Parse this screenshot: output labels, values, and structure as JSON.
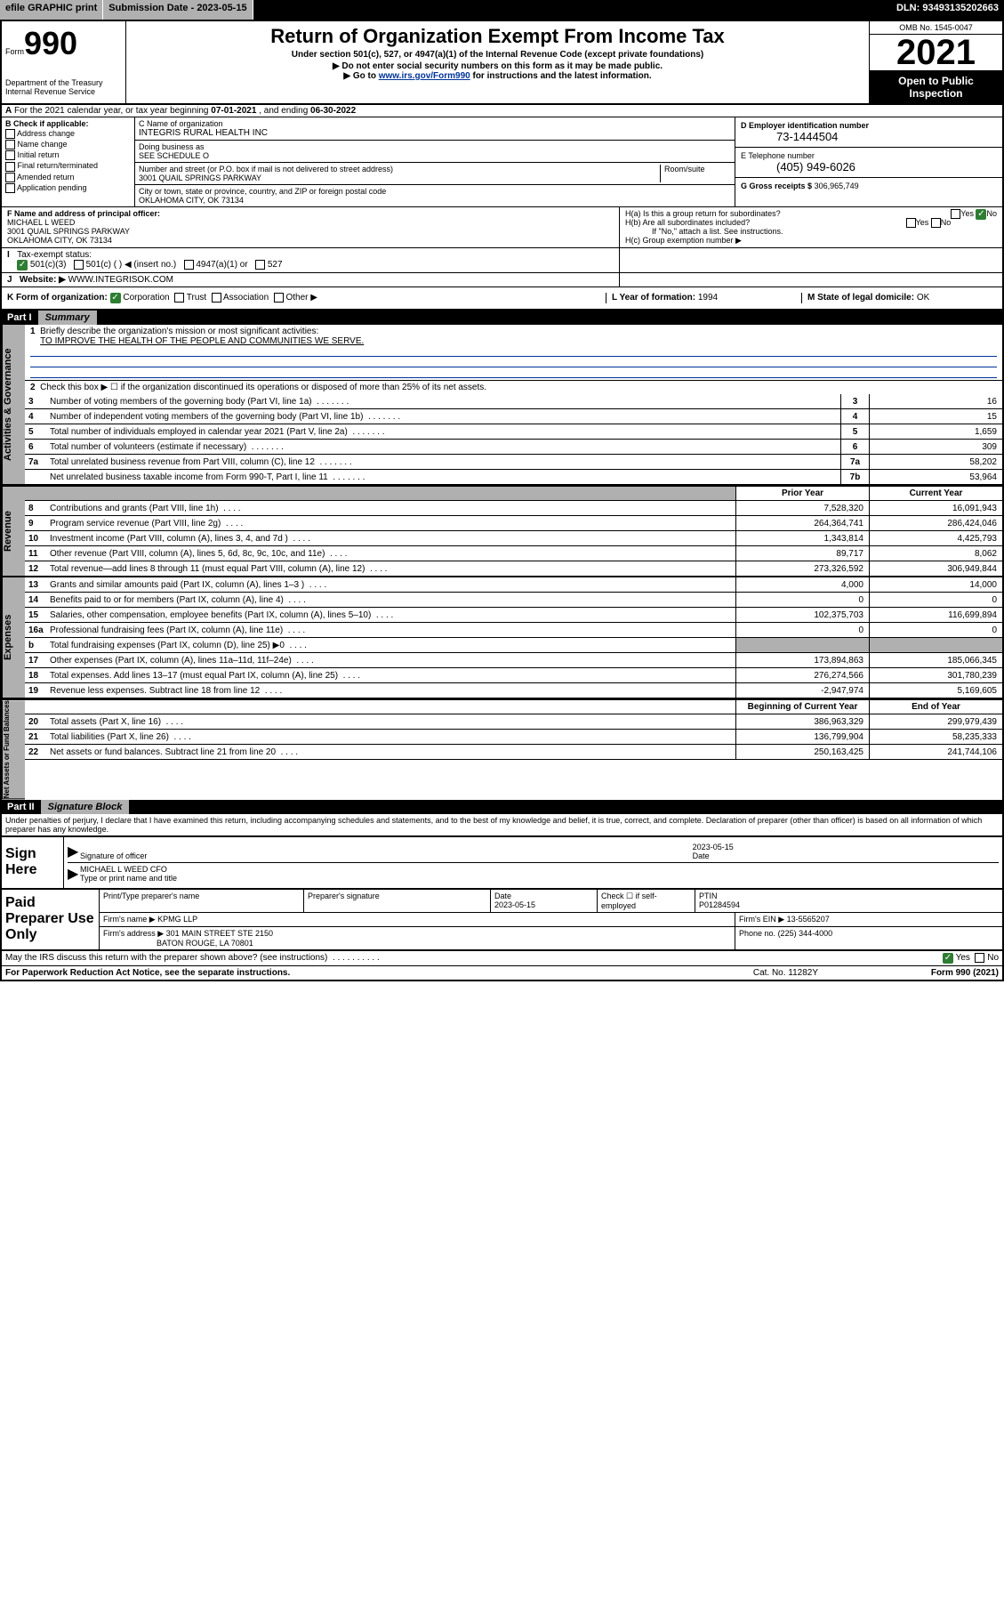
{
  "topbar": {
    "efile": "efile GRAPHIC print",
    "submission_label": "Submission Date - 2023-05-15",
    "dln": "DLN: 93493135202663"
  },
  "header": {
    "form_prefix": "Form",
    "form_number": "990",
    "title": "Return of Organization Exempt From Income Tax",
    "subtitle": "Under section 501(c), 527, or 4947(a)(1) of the Internal Revenue Code (except private foundations)",
    "note1": "▶ Do not enter social security numbers on this form as it may be made public.",
    "note2_pre": "▶ Go to ",
    "note2_link": "www.irs.gov/Form990",
    "note2_post": " for instructions and the latest information.",
    "dept": "Department of the Treasury\nInternal Revenue Service",
    "omb": "OMB No. 1545-0047",
    "year": "2021",
    "open_public": "Open to Public Inspection"
  },
  "line_a": {
    "text_pre": "For the 2021 calendar year, or tax year beginning ",
    "begin": "07-01-2021",
    "mid": " , and ending ",
    "end": "06-30-2022"
  },
  "box_b": {
    "header": "B Check if applicable:",
    "opts": [
      "Address change",
      "Name change",
      "Initial return",
      "Final return/terminated",
      "Amended return",
      "Application pending"
    ]
  },
  "box_c": {
    "name_label": "C Name of organization",
    "name": "INTEGRIS RURAL HEALTH INC",
    "dba_label": "Doing business as",
    "dba": "SEE SCHEDULE O",
    "street_label": "Number and street (or P.O. box if mail is not delivered to street address)",
    "room_label": "Room/suite",
    "street": "3001 QUAIL SPRINGS PARKWAY",
    "city_label": "City or town, state or province, country, and ZIP or foreign postal code",
    "city": "OKLAHOMA CITY, OK  73134"
  },
  "box_d": {
    "label": "D Employer identification number",
    "value": "73-1444504"
  },
  "box_e": {
    "label": "E Telephone number",
    "value": "(405) 949-6026"
  },
  "box_g": {
    "label": "G Gross receipts $",
    "value": "306,965,749"
  },
  "box_f": {
    "label": "F  Name and address of principal officer:",
    "name": "MICHAEL L WEED",
    "street": "3001 QUAIL SPRINGS PARKWAY",
    "city": "OKLAHOMA CITY, OK  73134"
  },
  "box_h": {
    "ha": "H(a)  Is this a group return for subordinates?",
    "hb": "H(b)  Are all subordinates included?",
    "hb_note": "If \"No,\" attach a list. See instructions.",
    "hc": "H(c)  Group exemption number ▶"
  },
  "box_i": {
    "label": "Tax-exempt status:",
    "opts": [
      "501(c)(3)",
      "501(c) (  ) ◀ (insert no.)",
      "4947(a)(1) or",
      "527"
    ]
  },
  "box_j": {
    "label": "Website: ▶",
    "value": "WWW.INTEGRISOK.COM"
  },
  "box_k": {
    "label": "K Form of organization:",
    "opts": [
      "Corporation",
      "Trust",
      "Association",
      "Other ▶"
    ],
    "l_label": "L Year of formation:",
    "l_val": "1994",
    "m_label": "M State of legal domicile:",
    "m_val": "OK"
  },
  "part1": {
    "header_num": "Part I",
    "header_title": "Summary",
    "line1_label": "Briefly describe the organization's mission or most significant activities:",
    "line1_text": "TO IMPROVE THE HEALTH OF THE PEOPLE AND COMMUNITIES WE SERVE.",
    "line2": "Check this box ▶ ☐ if the organization discontinued its operations or disposed of more than 25% of its net assets.",
    "sections": {
      "gov": "Activities & Governance",
      "rev": "Revenue",
      "exp": "Expenses",
      "net": "Net Assets or Fund Balances"
    },
    "col_hdr_prior": "Prior Year",
    "col_hdr_current": "Current Year",
    "col_hdr_boy": "Beginning of Current Year",
    "col_hdr_eoy": "End of Year",
    "lines_single": [
      {
        "n": "3",
        "t": "Number of voting members of the governing body (Part VI, line 1a)",
        "r": "3",
        "v": "16"
      },
      {
        "n": "4",
        "t": "Number of independent voting members of the governing body (Part VI, line 1b)",
        "r": "4",
        "v": "15"
      },
      {
        "n": "5",
        "t": "Total number of individuals employed in calendar year 2021 (Part V, line 2a)",
        "r": "5",
        "v": "1,659"
      },
      {
        "n": "6",
        "t": "Total number of volunteers (estimate if necessary)",
        "r": "6",
        "v": "309"
      },
      {
        "n": "7a",
        "t": "Total unrelated business revenue from Part VIII, column (C), line 12",
        "r": "7a",
        "v": "58,202"
      },
      {
        "n": "",
        "t": "Net unrelated business taxable income from Form 990-T, Part I, line 11",
        "r": "7b",
        "v": "53,964"
      }
    ],
    "lines_rev": [
      {
        "n": "8",
        "t": "Contributions and grants (Part VIII, line 1h)",
        "p": "7,528,320",
        "c": "16,091,943"
      },
      {
        "n": "9",
        "t": "Program service revenue (Part VIII, line 2g)",
        "p": "264,364,741",
        "c": "286,424,046"
      },
      {
        "n": "10",
        "t": "Investment income (Part VIII, column (A), lines 3, 4, and 7d )",
        "p": "1,343,814",
        "c": "4,425,793"
      },
      {
        "n": "11",
        "t": "Other revenue (Part VIII, column (A), lines 5, 6d, 8c, 9c, 10c, and 11e)",
        "p": "89,717",
        "c": "8,062"
      },
      {
        "n": "12",
        "t": "Total revenue—add lines 8 through 11 (must equal Part VIII, column (A), line 12)",
        "p": "273,326,592",
        "c": "306,949,844"
      }
    ],
    "lines_exp": [
      {
        "n": "13",
        "t": "Grants and similar amounts paid (Part IX, column (A), lines 1–3 )",
        "p": "4,000",
        "c": "14,000"
      },
      {
        "n": "14",
        "t": "Benefits paid to or for members (Part IX, column (A), line 4)",
        "p": "0",
        "c": "0"
      },
      {
        "n": "15",
        "t": "Salaries, other compensation, employee benefits (Part IX, column (A), lines 5–10)",
        "p": "102,375,703",
        "c": "116,699,894"
      },
      {
        "n": "16a",
        "t": "Professional fundraising fees (Part IX, column (A), line 11e)",
        "p": "0",
        "c": "0"
      },
      {
        "n": "b",
        "t": "Total fundraising expenses (Part IX, column (D), line 25) ▶0",
        "p": "",
        "c": "",
        "grey": true
      },
      {
        "n": "17",
        "t": "Other expenses (Part IX, column (A), lines 11a–11d, 11f–24e)",
        "p": "173,894,863",
        "c": "185,066,345"
      },
      {
        "n": "18",
        "t": "Total expenses. Add lines 13–17 (must equal Part IX, column (A), line 25)",
        "p": "276,274,566",
        "c": "301,780,239"
      },
      {
        "n": "19",
        "t": "Revenue less expenses. Subtract line 18 from line 12",
        "p": "-2,947,974",
        "c": "5,169,605"
      }
    ],
    "lines_net": [
      {
        "n": "20",
        "t": "Total assets (Part X, line 16)",
        "p": "386,963,329",
        "c": "299,979,439"
      },
      {
        "n": "21",
        "t": "Total liabilities (Part X, line 26)",
        "p": "136,799,904",
        "c": "58,235,333"
      },
      {
        "n": "22",
        "t": "Net assets or fund balances. Subtract line 21 from line 20",
        "p": "250,163,425",
        "c": "241,744,106"
      }
    ]
  },
  "part2": {
    "header_num": "Part II",
    "header_title": "Signature Block",
    "penalty": "Under penalties of perjury, I declare that I have examined this return, including accompanying schedules and statements, and to the best of my knowledge and belief, it is true, correct, and complete. Declaration of preparer (other than officer) is based on all information of which preparer has any knowledge.",
    "sign_here": "Sign Here",
    "sig_officer": "Signature of officer",
    "sig_date_label": "Date",
    "sig_date": "2023-05-15",
    "sig_name": "MICHAEL L WEED CFO",
    "sig_name_label": "Type or print name and title",
    "paid": "Paid Preparer Use Only",
    "p_name_label": "Print/Type preparer's name",
    "p_sig_label": "Preparer's signature",
    "p_date_label": "Date",
    "p_date": "2023-05-15",
    "p_check_label": "Check ☐ if self-employed",
    "ptin_label": "PTIN",
    "ptin": "P01284594",
    "firm_name_label": "Firm's name    ▶",
    "firm_name": "KPMG LLP",
    "firm_ein_label": "Firm's EIN ▶",
    "firm_ein": "13-5565207",
    "firm_addr_label": "Firm's address ▶",
    "firm_addr1": "301 MAIN STREET STE 2150",
    "firm_addr2": "BATON ROUGE, LA  70801",
    "firm_phone_label": "Phone no.",
    "firm_phone": "(225) 344-4000",
    "discuss": "May the IRS discuss this return with the preparer shown above? (see instructions)"
  },
  "footer": {
    "left": "For Paperwork Reduction Act Notice, see the separate instructions.",
    "mid": "Cat. No. 11282Y",
    "right": "Form 990 (2021)"
  }
}
